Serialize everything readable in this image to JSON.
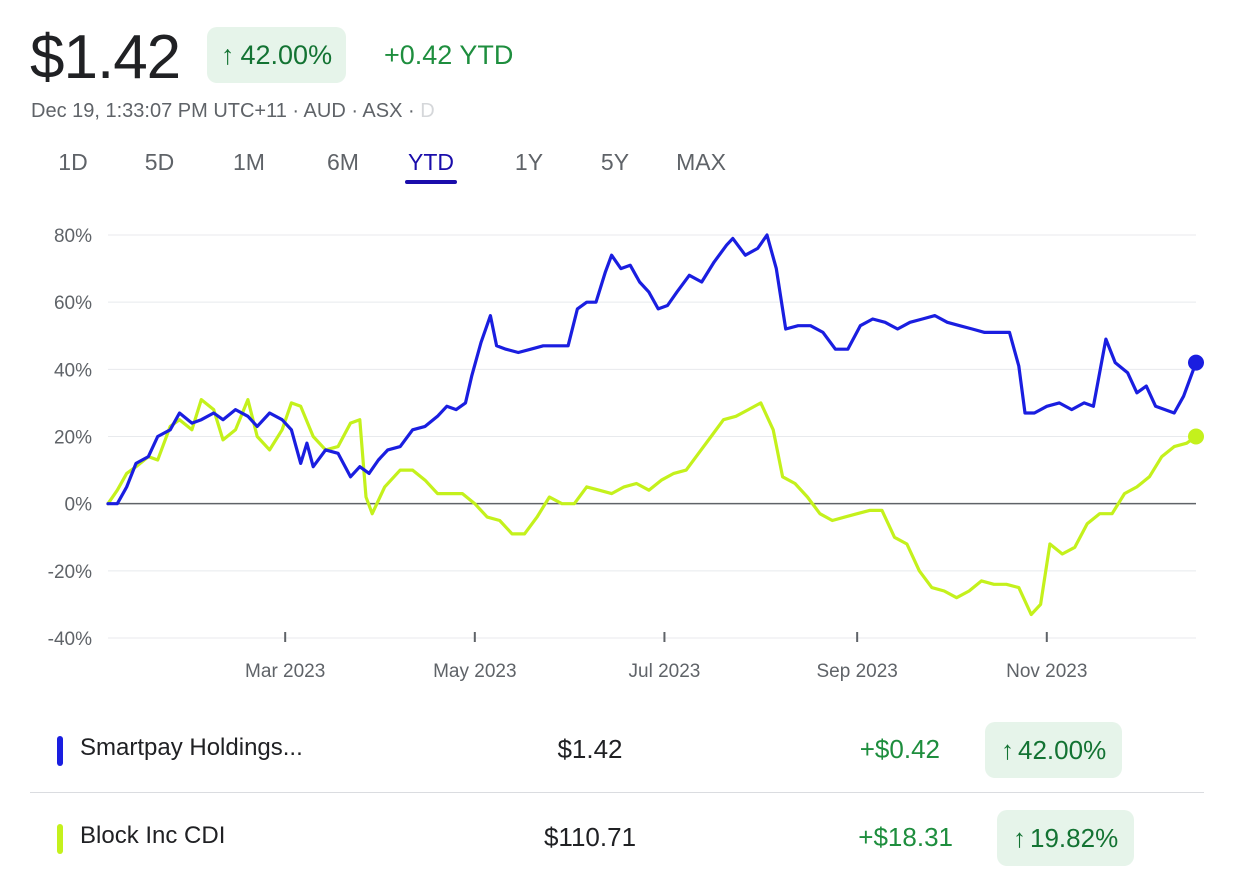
{
  "header": {
    "price": "$1.42",
    "change_pct_arrow": "↑",
    "change_pct": "42.00%",
    "change_abs": "+0.42 YTD",
    "meta": "Dec 19, 1:33:07 PM UTC+11 · AUD · ASX · ",
    "meta_faded": "D"
  },
  "tabs": [
    {
      "label": "1D"
    },
    {
      "label": "5D"
    },
    {
      "label": "1M"
    },
    {
      "label": "6M"
    },
    {
      "label": "YTD",
      "active": true
    },
    {
      "label": "1Y"
    },
    {
      "label": "5Y"
    },
    {
      "label": "MAX"
    }
  ],
  "colors": {
    "smartpay": "#1a1ee0",
    "block": "#c4f11c",
    "positive": "#1e8e3e",
    "positive_bg": "#e6f4ea",
    "active_tab": "#1a0dab"
  },
  "chart_data": {
    "type": "line",
    "y_unit": "%",
    "ylim": [
      -40,
      80
    ],
    "y_ticks": [
      80,
      60,
      40,
      20,
      0,
      -20,
      -40
    ],
    "y_tick_labels": [
      "80%",
      "60%",
      "40%",
      "20%",
      "0%",
      "-20%",
      "-40%"
    ],
    "x_tick_labels": [
      "Mar 2023",
      "May 2023",
      "Jul 2023",
      "Sep 2023",
      "Nov 2023"
    ],
    "x_ticks": [
      "2023-03-01",
      "2023-05-01",
      "2023-07-01",
      "2023-09-01",
      "2023-11-01"
    ],
    "x_range": [
      "2023-01-03",
      "2023-12-19"
    ],
    "grid": true,
    "series": [
      {
        "name": "Smartpay Holdings...",
        "points": [
          [
            "2023-01-03",
            0
          ],
          [
            "2023-01-06",
            0
          ],
          [
            "2023-01-09",
            5
          ],
          [
            "2023-01-12",
            12
          ],
          [
            "2023-01-16",
            14
          ],
          [
            "2023-01-19",
            20
          ],
          [
            "2023-01-23",
            22
          ],
          [
            "2023-01-26",
            27
          ],
          [
            "2023-01-30",
            24
          ],
          [
            "2023-02-02",
            25
          ],
          [
            "2023-02-06",
            27
          ],
          [
            "2023-02-09",
            25
          ],
          [
            "2023-02-13",
            28
          ],
          [
            "2023-02-17",
            26
          ],
          [
            "2023-02-20",
            23
          ],
          [
            "2023-02-24",
            27
          ],
          [
            "2023-02-28",
            25
          ],
          [
            "2023-03-03",
            22
          ],
          [
            "2023-03-06",
            12
          ],
          [
            "2023-03-08",
            18
          ],
          [
            "2023-03-10",
            11
          ],
          [
            "2023-03-14",
            16
          ],
          [
            "2023-03-18",
            15
          ],
          [
            "2023-03-22",
            8
          ],
          [
            "2023-03-25",
            11
          ],
          [
            "2023-03-28",
            9
          ],
          [
            "2023-03-31",
            13
          ],
          [
            "2023-04-03",
            16
          ],
          [
            "2023-04-07",
            17
          ],
          [
            "2023-04-11",
            22
          ],
          [
            "2023-04-15",
            23
          ],
          [
            "2023-04-19",
            26
          ],
          [
            "2023-04-22",
            29
          ],
          [
            "2023-04-25",
            28
          ],
          [
            "2023-04-28",
            30
          ],
          [
            "2023-04-30",
            38
          ],
          [
            "2023-05-03",
            48
          ],
          [
            "2023-05-06",
            56
          ],
          [
            "2023-05-08",
            47
          ],
          [
            "2023-05-11",
            46
          ],
          [
            "2023-05-15",
            45
          ],
          [
            "2023-05-19",
            46
          ],
          [
            "2023-05-23",
            47
          ],
          [
            "2023-05-27",
            47
          ],
          [
            "2023-05-31",
            47
          ],
          [
            "2023-06-03",
            58
          ],
          [
            "2023-06-06",
            60
          ],
          [
            "2023-06-09",
            60
          ],
          [
            "2023-06-12",
            69
          ],
          [
            "2023-06-14",
            74
          ],
          [
            "2023-06-17",
            70
          ],
          [
            "2023-06-20",
            71
          ],
          [
            "2023-06-23",
            66
          ],
          [
            "2023-06-26",
            63
          ],
          [
            "2023-06-29",
            58
          ],
          [
            "2023-07-02",
            59
          ],
          [
            "2023-07-05",
            63
          ],
          [
            "2023-07-09",
            68
          ],
          [
            "2023-07-13",
            66
          ],
          [
            "2023-07-17",
            72
          ],
          [
            "2023-07-21",
            77
          ],
          [
            "2023-07-23",
            79
          ],
          [
            "2023-07-27",
            74
          ],
          [
            "2023-07-31",
            76
          ],
          [
            "2023-08-03",
            80
          ],
          [
            "2023-08-06",
            70
          ],
          [
            "2023-08-09",
            52
          ],
          [
            "2023-08-13",
            53
          ],
          [
            "2023-08-17",
            53
          ],
          [
            "2023-08-21",
            51
          ],
          [
            "2023-08-25",
            46
          ],
          [
            "2023-08-29",
            46
          ],
          [
            "2023-09-02",
            53
          ],
          [
            "2023-09-06",
            55
          ],
          [
            "2023-09-10",
            54
          ],
          [
            "2023-09-14",
            52
          ],
          [
            "2023-09-18",
            54
          ],
          [
            "2023-09-22",
            55
          ],
          [
            "2023-09-26",
            56
          ],
          [
            "2023-09-30",
            54
          ],
          [
            "2023-10-04",
            53
          ],
          [
            "2023-10-08",
            52
          ],
          [
            "2023-10-12",
            51
          ],
          [
            "2023-10-16",
            51
          ],
          [
            "2023-10-20",
            51
          ],
          [
            "2023-10-23",
            41
          ],
          [
            "2023-10-25",
            27
          ],
          [
            "2023-10-28",
            27
          ],
          [
            "2023-11-01",
            29
          ],
          [
            "2023-11-05",
            30
          ],
          [
            "2023-11-09",
            28
          ],
          [
            "2023-11-13",
            30
          ],
          [
            "2023-11-16",
            29
          ],
          [
            "2023-11-20",
            49
          ],
          [
            "2023-11-23",
            42
          ],
          [
            "2023-11-27",
            39
          ],
          [
            "2023-11-30",
            33
          ],
          [
            "2023-12-03",
            35
          ],
          [
            "2023-12-06",
            29
          ],
          [
            "2023-12-09",
            28
          ],
          [
            "2023-12-12",
            27
          ],
          [
            "2023-12-15",
            32
          ],
          [
            "2023-12-19",
            42
          ]
        ]
      },
      {
        "name": "Block Inc CDI",
        "points": [
          [
            "2023-01-03",
            0
          ],
          [
            "2023-01-06",
            4
          ],
          [
            "2023-01-09",
            9
          ],
          [
            "2023-01-12",
            11
          ],
          [
            "2023-01-16",
            14
          ],
          [
            "2023-01-19",
            13
          ],
          [
            "2023-01-23",
            23
          ],
          [
            "2023-01-26",
            25
          ],
          [
            "2023-01-30",
            22
          ],
          [
            "2023-02-02",
            31
          ],
          [
            "2023-02-06",
            28
          ],
          [
            "2023-02-09",
            19
          ],
          [
            "2023-02-13",
            22
          ],
          [
            "2023-02-17",
            31
          ],
          [
            "2023-02-20",
            20
          ],
          [
            "2023-02-24",
            16
          ],
          [
            "2023-02-28",
            22
          ],
          [
            "2023-03-03",
            30
          ],
          [
            "2023-03-06",
            29
          ],
          [
            "2023-03-10",
            20
          ],
          [
            "2023-03-14",
            16
          ],
          [
            "2023-03-18",
            17
          ],
          [
            "2023-03-22",
            24
          ],
          [
            "2023-03-25",
            25
          ],
          [
            "2023-03-27",
            2
          ],
          [
            "2023-03-29",
            -3
          ],
          [
            "2023-04-02",
            5
          ],
          [
            "2023-04-07",
            10
          ],
          [
            "2023-04-11",
            10
          ],
          [
            "2023-04-15",
            7
          ],
          [
            "2023-04-19",
            3
          ],
          [
            "2023-04-23",
            3
          ],
          [
            "2023-04-27",
            3
          ],
          [
            "2023-05-01",
            0
          ],
          [
            "2023-05-05",
            -4
          ],
          [
            "2023-05-09",
            -5
          ],
          [
            "2023-05-13",
            -9
          ],
          [
            "2023-05-17",
            -9
          ],
          [
            "2023-05-21",
            -4
          ],
          [
            "2023-05-25",
            2
          ],
          [
            "2023-05-29",
            0
          ],
          [
            "2023-06-02",
            0
          ],
          [
            "2023-06-06",
            5
          ],
          [
            "2023-06-10",
            4
          ],
          [
            "2023-06-14",
            3
          ],
          [
            "2023-06-18",
            5
          ],
          [
            "2023-06-22",
            6
          ],
          [
            "2023-06-26",
            4
          ],
          [
            "2023-06-30",
            7
          ],
          [
            "2023-07-04",
            9
          ],
          [
            "2023-07-08",
            10
          ],
          [
            "2023-07-12",
            15
          ],
          [
            "2023-07-16",
            20
          ],
          [
            "2023-07-20",
            25
          ],
          [
            "2023-07-24",
            26
          ],
          [
            "2023-07-28",
            28
          ],
          [
            "2023-08-01",
            30
          ],
          [
            "2023-08-05",
            22
          ],
          [
            "2023-08-08",
            8
          ],
          [
            "2023-08-12",
            6
          ],
          [
            "2023-08-16",
            2
          ],
          [
            "2023-08-20",
            -3
          ],
          [
            "2023-08-24",
            -5
          ],
          [
            "2023-08-28",
            -4
          ],
          [
            "2023-09-01",
            -3
          ],
          [
            "2023-09-05",
            -2
          ],
          [
            "2023-09-09",
            -2
          ],
          [
            "2023-09-13",
            -10
          ],
          [
            "2023-09-17",
            -12
          ],
          [
            "2023-09-21",
            -20
          ],
          [
            "2023-09-25",
            -25
          ],
          [
            "2023-09-29",
            -26
          ],
          [
            "2023-10-03",
            -28
          ],
          [
            "2023-10-07",
            -26
          ],
          [
            "2023-10-11",
            -23
          ],
          [
            "2023-10-15",
            -24
          ],
          [
            "2023-10-19",
            -24
          ],
          [
            "2023-10-23",
            -25
          ],
          [
            "2023-10-27",
            -33
          ],
          [
            "2023-10-30",
            -30
          ],
          [
            "2023-11-02",
            -12
          ],
          [
            "2023-11-06",
            -15
          ],
          [
            "2023-11-10",
            -13
          ],
          [
            "2023-11-14",
            -6
          ],
          [
            "2023-11-18",
            -3
          ],
          [
            "2023-11-22",
            -3
          ],
          [
            "2023-11-26",
            3
          ],
          [
            "2023-11-30",
            5
          ],
          [
            "2023-12-04",
            8
          ],
          [
            "2023-12-08",
            14
          ],
          [
            "2023-12-12",
            17
          ],
          [
            "2023-12-16",
            18
          ],
          [
            "2023-12-19",
            20
          ]
        ]
      }
    ]
  },
  "legend": [
    {
      "name": "Smartpay Holdings...",
      "price": "$1.42",
      "change": "+$0.42",
      "arrow": "↑",
      "pct": "42.00%"
    },
    {
      "name": "Block Inc CDI",
      "price": "$110.71",
      "change": "+$18.31",
      "arrow": "↑",
      "pct": "19.82%"
    }
  ]
}
